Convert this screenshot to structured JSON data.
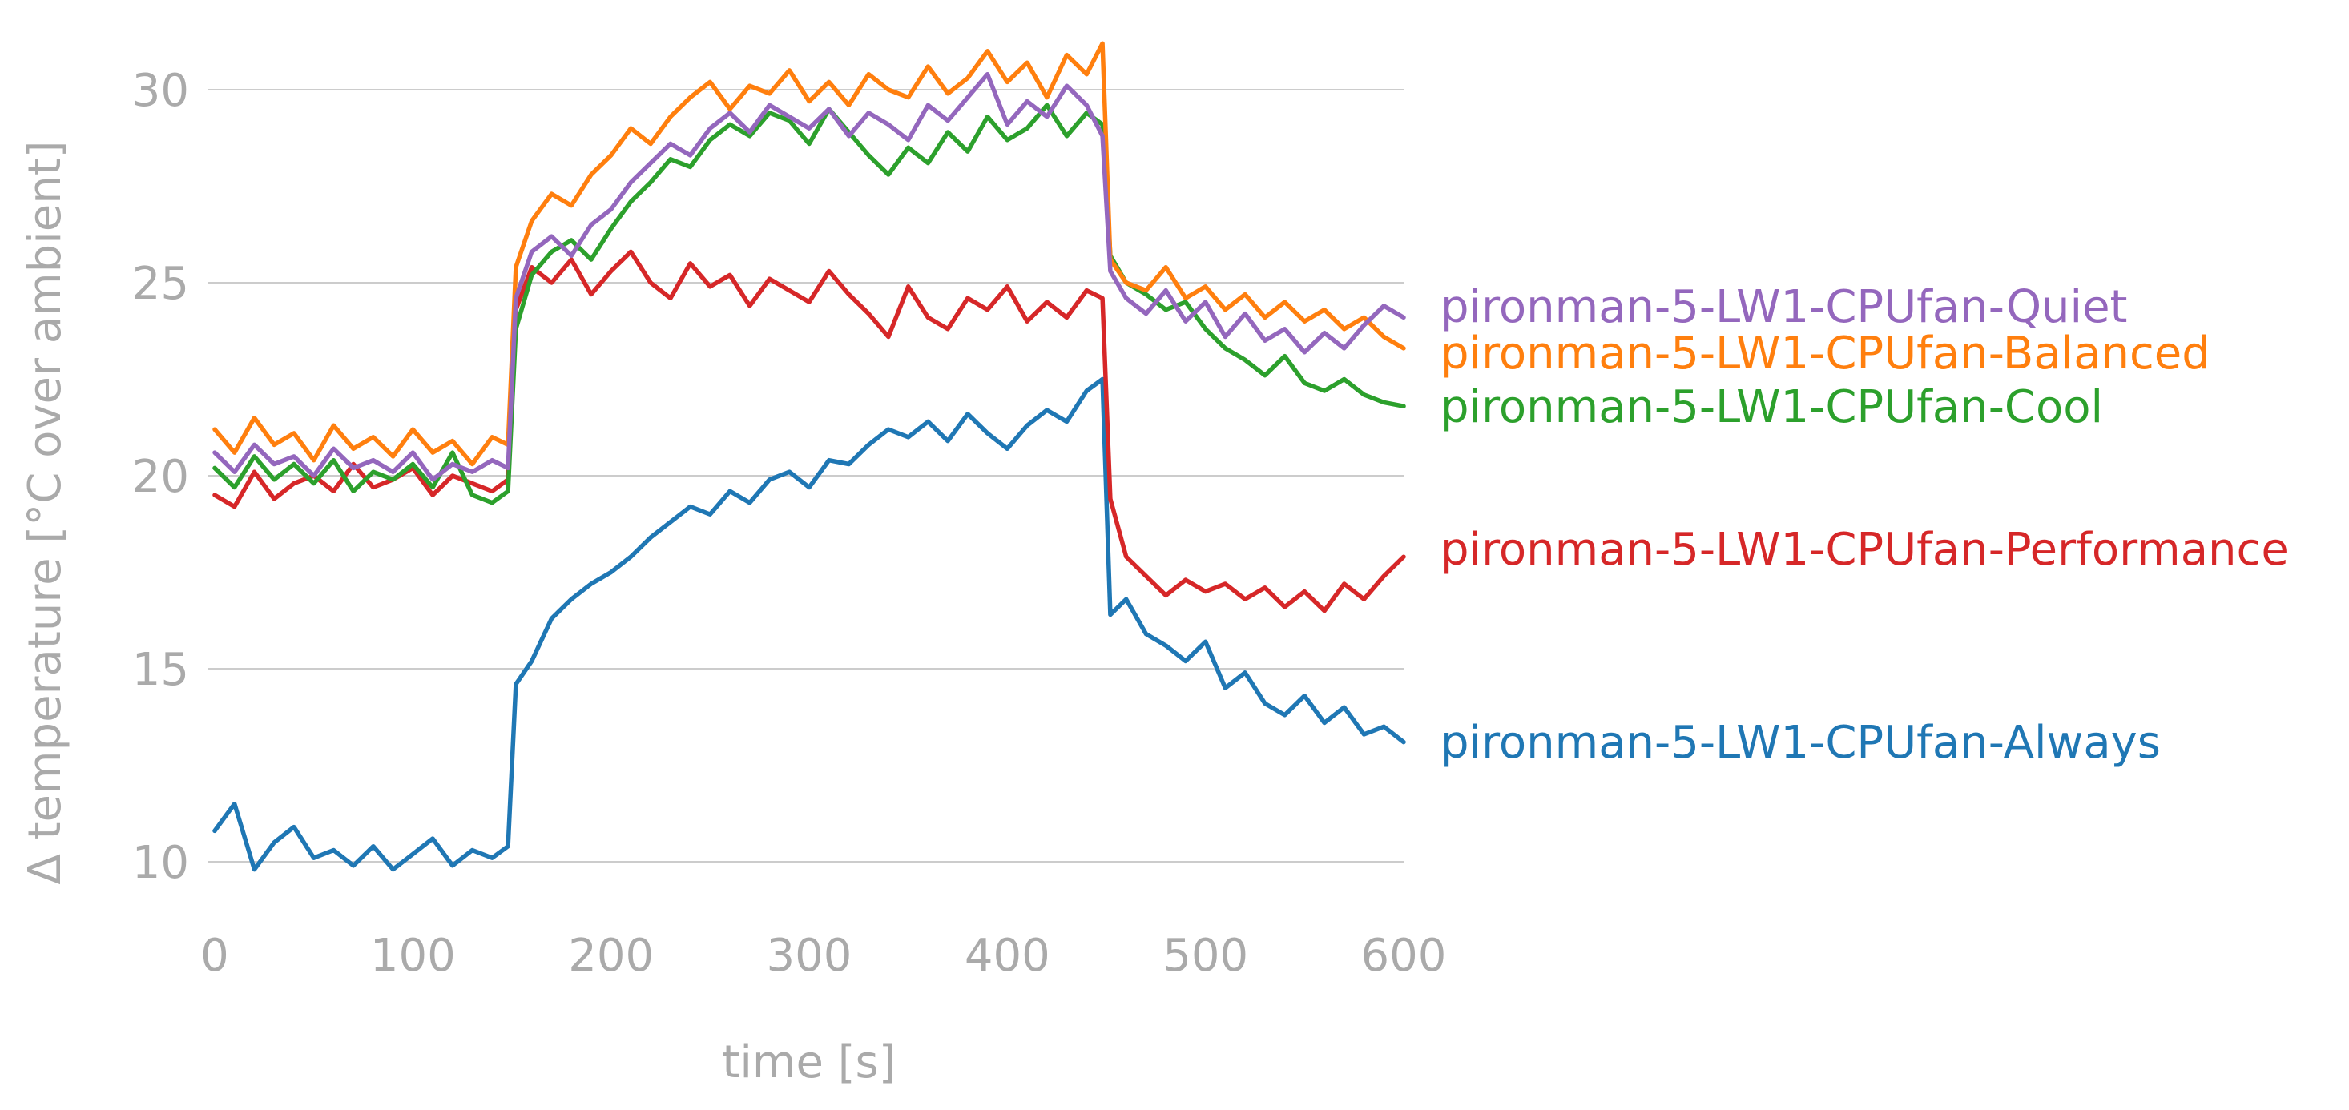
{
  "chart_data": {
    "type": "line",
    "title": "",
    "xlabel": "time [s]",
    "ylabel": "Δ temperature [°C over ambient]",
    "xlim": [
      0,
      600
    ],
    "ylim": [
      8.5,
      31.8
    ],
    "xticks": [
      0,
      100,
      200,
      300,
      400,
      500,
      600
    ],
    "yticks": [
      10,
      15,
      20,
      25,
      30
    ],
    "grid": "horizontal",
    "legend": "direct labels at right end of lines",
    "series": [
      {
        "name": "pironman-5-LW1-CPUfan-Always",
        "color": "#1f77b4",
        "x": [
          0,
          10,
          20,
          30,
          40,
          50,
          60,
          70,
          80,
          90,
          100,
          110,
          120,
          130,
          140,
          148,
          152,
          160,
          170,
          180,
          190,
          200,
          210,
          220,
          230,
          240,
          250,
          260,
          270,
          280,
          290,
          300,
          310,
          320,
          330,
          340,
          350,
          360,
          370,
          380,
          390,
          400,
          410,
          420,
          430,
          440,
          448,
          452,
          460,
          470,
          480,
          490,
          500,
          510,
          520,
          530,
          540,
          550,
          560,
          570,
          580,
          590,
          600
        ],
        "values": [
          10.8,
          11.5,
          9.8,
          10.5,
          10.9,
          10.1,
          10.3,
          9.9,
          10.4,
          9.8,
          10.2,
          10.6,
          9.9,
          10.3,
          10.1,
          10.4,
          14.6,
          15.2,
          16.3,
          16.8,
          17.2,
          17.5,
          17.9,
          18.4,
          18.8,
          19.2,
          19.0,
          19.6,
          19.3,
          19.9,
          20.1,
          19.7,
          20.4,
          20.3,
          20.8,
          21.2,
          21.0,
          21.4,
          20.9,
          21.6,
          21.1,
          20.7,
          21.3,
          21.7,
          21.4,
          22.2,
          22.5,
          16.4,
          16.8,
          15.9,
          15.6,
          15.2,
          15.7,
          14.5,
          14.9,
          14.1,
          13.8,
          14.3,
          13.6,
          14.0,
          13.3,
          13.5,
          13.1
        ]
      },
      {
        "name": "pironman-5-LW1-CPUfan-Performance",
        "color": "#d62728",
        "x": [
          0,
          10,
          20,
          30,
          40,
          50,
          60,
          70,
          80,
          90,
          100,
          110,
          120,
          130,
          140,
          148,
          152,
          160,
          170,
          180,
          190,
          200,
          210,
          220,
          230,
          240,
          250,
          260,
          270,
          280,
          290,
          300,
          310,
          320,
          330,
          340,
          350,
          360,
          370,
          380,
          390,
          400,
          410,
          420,
          430,
          440,
          448,
          452,
          460,
          470,
          480,
          490,
          500,
          510,
          520,
          530,
          540,
          550,
          560,
          570,
          580,
          590,
          600
        ],
        "values": [
          19.5,
          19.2,
          20.1,
          19.4,
          19.8,
          20.0,
          19.6,
          20.3,
          19.7,
          19.9,
          20.2,
          19.5,
          20.0,
          19.8,
          19.6,
          19.9,
          24.3,
          25.4,
          25.0,
          25.6,
          24.7,
          25.3,
          25.8,
          25.0,
          24.6,
          25.5,
          24.9,
          25.2,
          24.4,
          25.1,
          24.8,
          24.5,
          25.3,
          24.7,
          24.2,
          23.6,
          24.9,
          24.1,
          23.8,
          24.6,
          24.3,
          24.9,
          24.0,
          24.5,
          24.1,
          24.8,
          24.6,
          19.4,
          17.9,
          17.4,
          16.9,
          17.3,
          17.0,
          17.2,
          16.8,
          17.1,
          16.6,
          17.0,
          16.5,
          17.2,
          16.8,
          17.4,
          17.9
        ]
      },
      {
        "name": "pironman-5-LW1-CPUfan-Cool",
        "color": "#2ca02c",
        "x": [
          0,
          10,
          20,
          30,
          40,
          50,
          60,
          70,
          80,
          90,
          100,
          110,
          120,
          130,
          140,
          148,
          152,
          160,
          170,
          180,
          190,
          200,
          210,
          220,
          230,
          240,
          250,
          260,
          270,
          280,
          290,
          300,
          310,
          320,
          330,
          340,
          350,
          360,
          370,
          380,
          390,
          400,
          410,
          420,
          430,
          440,
          448,
          452,
          460,
          470,
          480,
          490,
          500,
          510,
          520,
          530,
          540,
          550,
          560,
          570,
          580,
          590,
          600
        ],
        "values": [
          20.2,
          19.7,
          20.5,
          19.9,
          20.3,
          19.8,
          20.4,
          19.6,
          20.1,
          19.9,
          20.3,
          19.7,
          20.6,
          19.5,
          19.3,
          19.6,
          23.8,
          25.2,
          25.8,
          26.1,
          25.6,
          26.4,
          27.1,
          27.6,
          28.2,
          28.0,
          28.7,
          29.1,
          28.8,
          29.4,
          29.2,
          28.6,
          29.5,
          28.9,
          28.3,
          27.8,
          28.5,
          28.1,
          28.9,
          28.4,
          29.3,
          28.7,
          29.0,
          29.6,
          28.8,
          29.4,
          29.1,
          25.7,
          25.0,
          24.7,
          24.3,
          24.5,
          23.8,
          23.3,
          23.0,
          22.6,
          23.1,
          22.4,
          22.2,
          22.5,
          22.1,
          21.9,
          21.8
        ]
      },
      {
        "name": "pironman-5-LW1-CPUfan-Balanced",
        "color": "#ff7f0e",
        "x": [
          0,
          10,
          20,
          30,
          40,
          50,
          60,
          70,
          80,
          90,
          100,
          110,
          120,
          130,
          140,
          148,
          152,
          160,
          170,
          180,
          190,
          200,
          210,
          220,
          230,
          240,
          250,
          260,
          270,
          280,
          290,
          300,
          310,
          320,
          330,
          340,
          350,
          360,
          370,
          380,
          390,
          400,
          410,
          420,
          430,
          440,
          448,
          452,
          460,
          470,
          480,
          490,
          500,
          510,
          520,
          530,
          540,
          550,
          560,
          570,
          580,
          590,
          600
        ],
        "values": [
          21.2,
          20.6,
          21.5,
          20.8,
          21.1,
          20.4,
          21.3,
          20.7,
          21.0,
          20.5,
          21.2,
          20.6,
          20.9,
          20.3,
          21.0,
          20.8,
          25.4,
          26.6,
          27.3,
          27.0,
          27.8,
          28.3,
          29.0,
          28.6,
          29.3,
          29.8,
          30.2,
          29.5,
          30.1,
          29.9,
          30.5,
          29.7,
          30.2,
          29.6,
          30.4,
          30.0,
          29.8,
          30.6,
          29.9,
          30.3,
          31.0,
          30.2,
          30.7,
          29.8,
          30.9,
          30.4,
          31.2,
          25.6,
          25.0,
          24.8,
          25.4,
          24.6,
          24.9,
          24.3,
          24.7,
          24.1,
          24.5,
          24.0,
          24.3,
          23.8,
          24.1,
          23.6,
          23.3
        ]
      },
      {
        "name": "pironman-5-LW1-CPUfan-Quiet",
        "color": "#9467bd",
        "x": [
          0,
          10,
          20,
          30,
          40,
          50,
          60,
          70,
          80,
          90,
          100,
          110,
          120,
          130,
          140,
          148,
          152,
          160,
          170,
          180,
          190,
          200,
          210,
          220,
          230,
          240,
          250,
          260,
          270,
          280,
          290,
          300,
          310,
          320,
          330,
          340,
          350,
          360,
          370,
          380,
          390,
          400,
          410,
          420,
          430,
          440,
          448,
          452,
          460,
          470,
          480,
          490,
          500,
          510,
          520,
          530,
          540,
          550,
          560,
          570,
          580,
          590,
          600
        ],
        "values": [
          20.6,
          20.1,
          20.8,
          20.3,
          20.5,
          20.0,
          20.7,
          20.2,
          20.4,
          20.1,
          20.6,
          19.9,
          20.3,
          20.1,
          20.4,
          20.2,
          24.6,
          25.8,
          26.2,
          25.7,
          26.5,
          26.9,
          27.6,
          28.1,
          28.6,
          28.3,
          29.0,
          29.4,
          28.9,
          29.6,
          29.3,
          29.0,
          29.5,
          28.8,
          29.4,
          29.1,
          28.7,
          29.6,
          29.2,
          29.8,
          30.4,
          29.1,
          29.7,
          29.3,
          30.1,
          29.6,
          28.8,
          25.3,
          24.6,
          24.2,
          24.8,
          24.0,
          24.5,
          23.6,
          24.2,
          23.5,
          23.8,
          23.2,
          23.7,
          23.3,
          23.9,
          24.4,
          24.1
        ]
      }
    ]
  }
}
